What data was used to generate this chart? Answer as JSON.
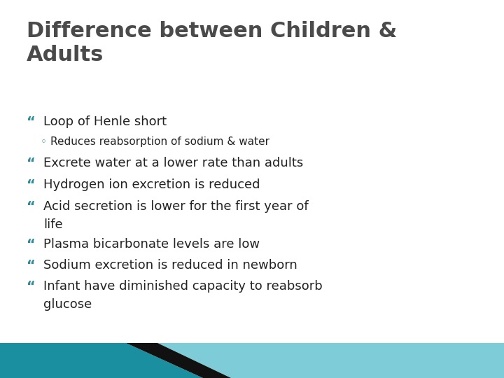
{
  "title_line1": "Difference between Children &",
  "title_line2": "Adults",
  "title_color": "#4a4a4a",
  "title_fontsize": 22,
  "title_font_weight": "bold",
  "background_color": "#ffffff",
  "bullet_color": "#2e8b9a",
  "sub_bullet_color": "#2e8b9a",
  "text_color": "#222222",
  "bullet1": "Loop of Henle short",
  "sub_bullet1": "Reduces reabsorption of sodium & water",
  "bullet2": "Excrete water at a lower rate than adults",
  "bullet3": "Hydrogen ion excretion is reduced",
  "bullet4_1": "Acid secretion is lower for the first year of",
  "bullet4_2": "life",
  "bullet5": "Plasma bicarbonate levels are low",
  "bullet6": "Sodium excretion is reduced in newborn",
  "bullet7_1": "Infant have diminished capacity to reabsorb",
  "bullet7_2": "glucose",
  "bullet_fontsize": 13,
  "sub_bullet_fontsize": 11,
  "footer_teal_dark": "#1a8fa0",
  "footer_black": "#111111",
  "footer_teal_light": "#7eccd8"
}
